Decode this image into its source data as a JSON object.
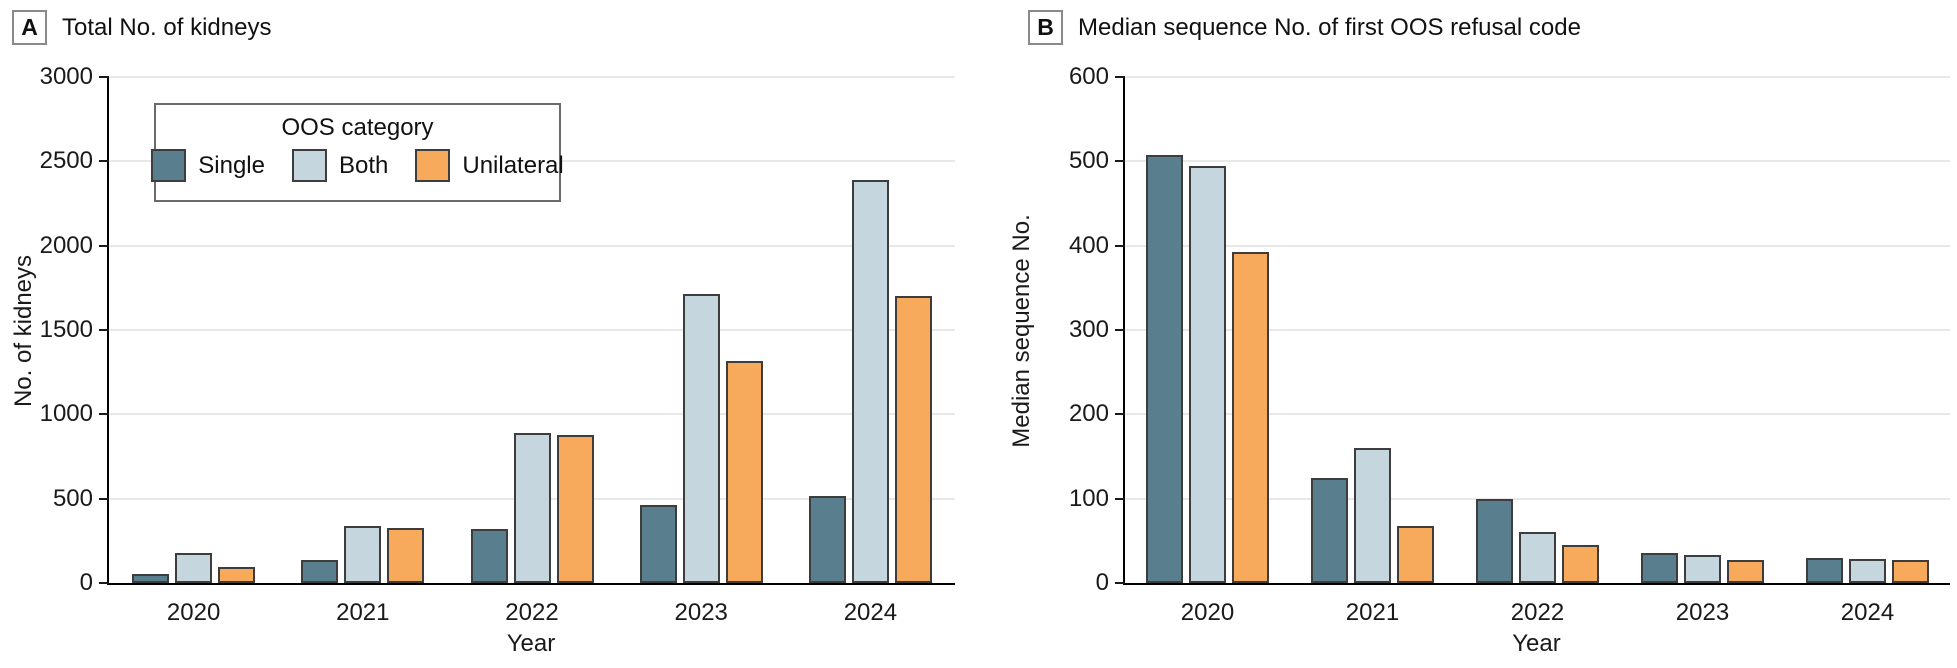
{
  "colors": {
    "single": "#597f8e",
    "both": "#c5d6de",
    "unilateral": "#f7a95c",
    "bar_border": "#3d3d3d",
    "gridline": "#e8e8e8",
    "axis": "#000000"
  },
  "legend": {
    "title": "OOS category",
    "items": [
      {
        "key": "single",
        "label": "Single"
      },
      {
        "key": "both",
        "label": "Both"
      },
      {
        "key": "unilateral",
        "label": "Unilateral"
      }
    ]
  },
  "chart_data": [
    {
      "type": "bar",
      "panel_label": "A",
      "title": "Total No. of kidneys",
      "ylabel": "No. of kidneys",
      "xlabel": "Year",
      "categories": [
        "2020",
        "2021",
        "2022",
        "2023",
        "2024"
      ],
      "ylim": [
        0,
        3000
      ],
      "ytick_step": 500,
      "grid": true,
      "legend_position": "inside-top-left",
      "series": [
        {
          "key": "single",
          "name": "Single",
          "values": [
            55,
            135,
            320,
            460,
            515
          ]
        },
        {
          "key": "both",
          "name": "Both",
          "values": [
            175,
            335,
            890,
            1715,
            2390
          ]
        },
        {
          "key": "unilateral",
          "name": "Unilateral",
          "values": [
            95,
            325,
            880,
            1315,
            1700
          ]
        }
      ]
    },
    {
      "type": "bar",
      "panel_label": "B",
      "title": "Median sequence No. of first OOS refusal code",
      "ylabel": "Median sequence No.",
      "xlabel": "Year",
      "categories": [
        "2020",
        "2021",
        "2022",
        "2023",
        "2024"
      ],
      "ylim": [
        0,
        600
      ],
      "ytick_step": 100,
      "grid": true,
      "legend_position": "none",
      "series": [
        {
          "key": "single",
          "name": "Single",
          "values": [
            508,
            125,
            100,
            35,
            30
          ]
        },
        {
          "key": "both",
          "name": "Both",
          "values": [
            495,
            160,
            60,
            33,
            28
          ]
        },
        {
          "key": "unilateral",
          "name": "Unilateral",
          "values": [
            393,
            67,
            45,
            27,
            27
          ]
        }
      ]
    }
  ]
}
